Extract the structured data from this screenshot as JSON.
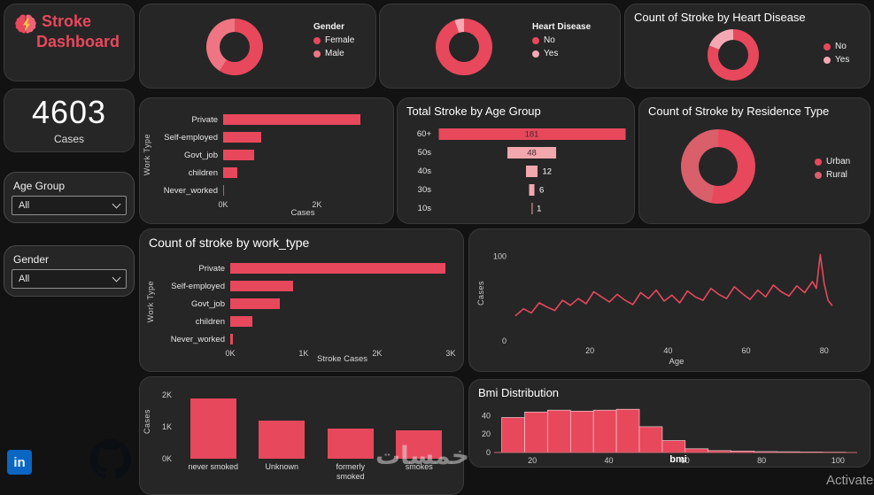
{
  "app": {
    "title_line1": "Stroke",
    "title_line2": "Dashboard",
    "cases_value": "4603",
    "cases_label": "Cases",
    "slicers": [
      {
        "label": "Age Group",
        "value": "All"
      },
      {
        "label": "Gender",
        "value": "All"
      }
    ],
    "linkedin_glyph": "in",
    "watermark": "خمسات",
    "activate_text": "Activate"
  },
  "colors": {
    "accent": "#e8485c",
    "accent_light": "#f2a7ae",
    "card_bg": "#262626",
    "page_bg": "#121212"
  },
  "chart_data": [
    {
      "id": "gender_donut",
      "type": "pie",
      "render": "donut",
      "title": "Gender",
      "labels": [
        "Female",
        "Male"
      ],
      "values": [
        59,
        41
      ],
      "colors": [
        "#e8485c",
        "#ef7583"
      ],
      "legend_position": "right"
    },
    {
      "id": "heart_donut",
      "type": "pie",
      "render": "donut",
      "title": "Heart Disease",
      "labels": [
        "No",
        "Yes"
      ],
      "values": [
        94.6,
        5.4
      ],
      "colors": [
        "#e8485c",
        "#f4a9b2"
      ],
      "legend_position": "right"
    },
    {
      "id": "stroke_hd_donut",
      "type": "pie",
      "render": "donut",
      "title": "Count of Stroke by Heart Disease",
      "labels": [
        "No",
        "Yes"
      ],
      "values": [
        81,
        19
      ],
      "colors": [
        "#e8485c",
        "#f4a9b2"
      ],
      "legend_position": "right"
    },
    {
      "id": "worktype_cases",
      "type": "bar",
      "render": "hbar",
      "orientation": "horizontal",
      "categories": [
        "Private",
        "Self-employed",
        "Govt_job",
        "children",
        "Never_worked"
      ],
      "values": [
        2925,
        820,
        657,
        300,
        22
      ],
      "xmax": 3400,
      "xticks": [
        {
          "label": "0K",
          "v": 0
        },
        {
          "label": "2K",
          "v": 2000
        }
      ],
      "xlabel": "Cases",
      "ylabel": "Work Type",
      "color": "#e8485c"
    },
    {
      "id": "age_funnel",
      "type": "funnel",
      "render": "funnel",
      "title": "Total Stroke by Age Group",
      "categories": [
        "60+",
        "50s",
        "40s",
        "30s",
        "10s"
      ],
      "values": [
        181,
        48,
        12,
        6,
        1
      ],
      "colors": [
        "#e8485c",
        "#f2a7ae",
        "#f2a7ae",
        "#f2a7ae",
        "#f2a7ae"
      ]
    },
    {
      "id": "residence_donut",
      "type": "pie",
      "render": "donut",
      "title": "Count of Stroke by Residence Type",
      "labels": [
        "Urban",
        "Rural"
      ],
      "values": [
        53,
        47
      ],
      "colors": [
        "#e8485c",
        "#d95f6b"
      ],
      "legend_position": "right"
    },
    {
      "id": "worktype_stroke",
      "type": "bar",
      "render": "hbar",
      "orientation": "horizontal",
      "title": "Count of stroke by work_type",
      "categories": [
        "Private",
        "Self-employed",
        "Govt_job",
        "children",
        "Never_worked"
      ],
      "values": [
        2925,
        860,
        680,
        300,
        40
      ],
      "xmax": 3050,
      "xticks": [
        {
          "label": "0K",
          "v": 0
        },
        {
          "label": "1K",
          "v": 1000
        },
        {
          "label": "2K",
          "v": 2000
        },
        {
          "label": "3K",
          "v": 3000
        }
      ],
      "xlabel": "Stroke Cases",
      "ylabel": "Work Type",
      "color": "#e8485c"
    },
    {
      "id": "age_line",
      "type": "line",
      "render": "line",
      "xlabel": "Age",
      "ylabel": "Cases",
      "xmin": 0,
      "xmax": 88,
      "ymin": 0,
      "ymax": 115,
      "xticks": [
        {
          "label": "20",
          "v": 20
        },
        {
          "label": "40",
          "v": 40
        },
        {
          "label": "60",
          "v": 60
        },
        {
          "label": "80",
          "v": 80
        }
      ],
      "yticks": [
        {
          "label": "0",
          "v": 0
        },
        {
          "label": "100",
          "v": 100
        }
      ],
      "color": "#e8485c",
      "x": [
        1,
        3,
        5,
        7,
        9,
        11,
        13,
        15,
        17,
        19,
        21,
        23,
        25,
        27,
        29,
        31,
        33,
        35,
        37,
        39,
        41,
        43,
        45,
        47,
        49,
        51,
        53,
        55,
        57,
        59,
        61,
        63,
        65,
        67,
        69,
        71,
        73,
        75,
        77,
        78,
        79,
        80,
        81,
        82
      ],
      "y": [
        30,
        38,
        33,
        45,
        40,
        36,
        48,
        42,
        50,
        44,
        58,
        52,
        46,
        55,
        48,
        43,
        57,
        50,
        60,
        47,
        54,
        45,
        59,
        52,
        48,
        62,
        55,
        50,
        64,
        56,
        49,
        60,
        52,
        66,
        58,
        53,
        65,
        57,
        70,
        62,
        102,
        68,
        48,
        42
      ]
    },
    {
      "id": "smoking_bar",
      "type": "bar",
      "render": "vbar",
      "orientation": "vertical",
      "categories": [
        "never smoked",
        "Unknown",
        "formerly smoked",
        "smokes"
      ],
      "values": [
        1890,
        1180,
        930,
        880
      ],
      "ymax": 2100,
      "yticks": [
        {
          "label": "0K",
          "v": 0
        },
        {
          "label": "1K",
          "v": 1000
        },
        {
          "label": "2K",
          "v": 2000
        }
      ],
      "ylabel": "Cases",
      "color": "#e8485c"
    },
    {
      "id": "bmi_hist",
      "type": "bar",
      "render": "hist",
      "title": "Bmi Distribution",
      "xlabel": "bmi",
      "xmin": 10,
      "xmax": 105,
      "ymax": 52,
      "bin_start": 12,
      "bin_width": 6,
      "values": [
        38,
        44,
        46,
        45,
        46,
        47,
        28,
        13,
        4,
        2,
        1.5,
        1,
        0.8,
        0.6,
        0.4
      ],
      "xticks": [
        {
          "label": "20",
          "v": 20
        },
        {
          "label": "40",
          "v": 40
        },
        {
          "label": "60",
          "v": 60
        },
        {
          "label": "80",
          "v": 80
        },
        {
          "label": "100",
          "v": 100
        }
      ],
      "yticks": [
        {
          "label": "0",
          "v": 0
        },
        {
          "label": "20",
          "v": 20
        },
        {
          "label": "40",
          "v": 40
        }
      ],
      "color": "#e8485c",
      "bar_border": "#edccd0"
    }
  ]
}
